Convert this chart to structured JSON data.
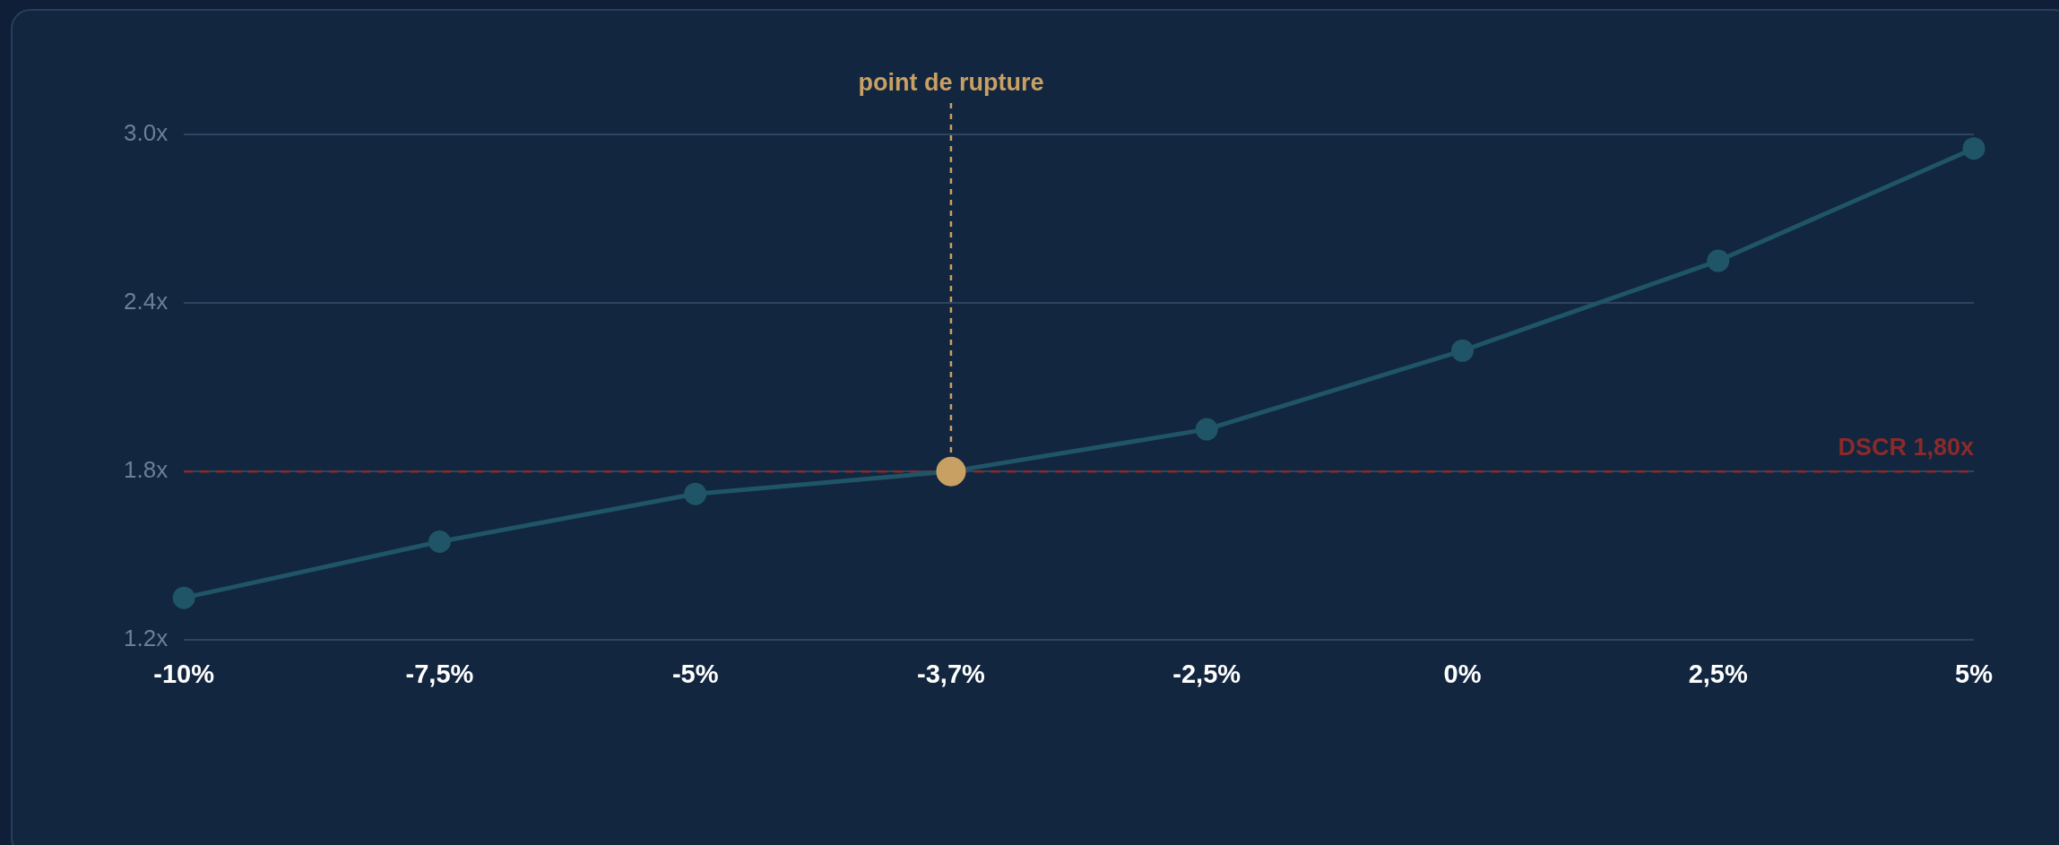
{
  "chart_data": {
    "type": "line",
    "categories": [
      "-10%",
      "-7,5%",
      "-5%",
      "-3,7%",
      "-2,5%",
      "0%",
      "2,5%",
      "5%"
    ],
    "series": [
      {
        "color": "#1f5566",
        "colors": [
          "#1f5566",
          "#1f5566",
          "#1f5566",
          "#c9a063",
          "#1f5566",
          "#1f5566",
          "#1f5566",
          "#1f5566"
        ],
        "values": [
          1.35,
          1.55,
          1.72,
          1.8,
          1.95,
          2.23,
          2.55,
          2.95
        ]
      }
    ],
    "ylim": [
      1.2,
      3.0
    ],
    "yticks": [
      {
        "value": 1.2,
        "label": "1.2x"
      },
      {
        "value": 1.8,
        "label": "1.8x"
      },
      {
        "value": 2.4,
        "label": "2.4x"
      },
      {
        "value": 3.0,
        "label": "3.0x"
      }
    ],
    "ref_lines": [
      {
        "axis": "y",
        "value": 1.8,
        "label": "DSCR 1,80x",
        "color": "#8b2a2a",
        "line_style": "dashed"
      },
      {
        "axis": "x",
        "value": "-3,7%",
        "label": "point de rupture",
        "color": "#c9a063",
        "line_style": "dashed"
      }
    ],
    "grid": "y",
    "legend": false,
    "marker": "circle",
    "line_style": "solid"
  }
}
